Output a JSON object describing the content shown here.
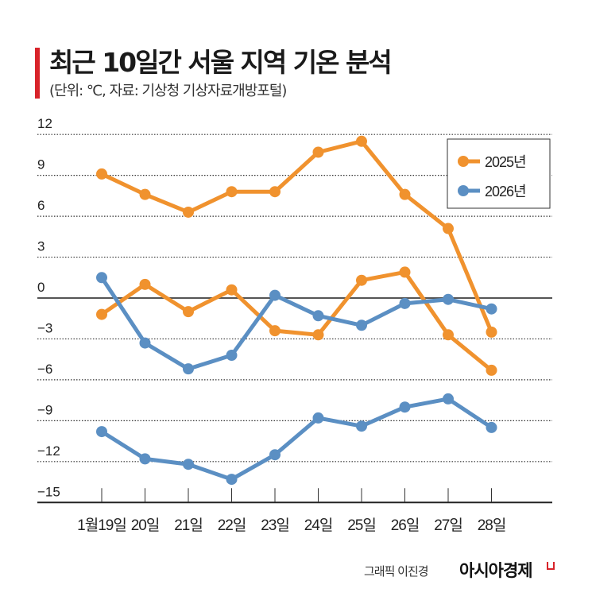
{
  "header": {
    "title": "최근 10일간 서울 지역 기온 분석",
    "subtitle": "(단위: ℃, 자료: 기상청 기상자료개방포털)"
  },
  "footer": {
    "credit": "그래픽 이진경",
    "brand": "아시아경제"
  },
  "chart_data": {
    "type": "line",
    "title": "최근 10일간 서울 지역 기온 분석",
    "subtitle": "(단위: ℃, 자료: 기상청 기상자료개방포털)",
    "categories": [
      "1월19일",
      "20일",
      "21일",
      "22일",
      "23일",
      "24일",
      "25일",
      "26일",
      "27일",
      "28일"
    ],
    "yticks": [
      12,
      9,
      6,
      3,
      0,
      -3,
      -6,
      -9,
      -12,
      -15
    ],
    "ylim": [
      -15,
      12
    ],
    "grid": "horizontal dotted",
    "legend_placement": "top-right",
    "legend": [
      {
        "name": "2025년",
        "color": "#F0922E"
      },
      {
        "name": "2026년",
        "color": "#5B8FC3"
      }
    ],
    "series": [
      {
        "legend": "2025년",
        "color": "#F0922E",
        "values": [
          9.1,
          7.6,
          6.3,
          7.8,
          7.8,
          10.7,
          11.5,
          7.6,
          5.1,
          -2.5
        ]
      },
      {
        "legend": "2025년",
        "color": "#F0922E",
        "values": [
          -1.2,
          1.0,
          -1.0,
          0.6,
          -2.4,
          -2.7,
          1.3,
          1.9,
          -2.7,
          -5.3
        ]
      },
      {
        "legend": "2026년",
        "color": "#5B8FC3",
        "values": [
          1.5,
          -3.3,
          -5.2,
          -4.2,
          0.2,
          -1.3,
          -2.0,
          -0.4,
          -0.1,
          -0.8
        ]
      },
      {
        "legend": "2026년",
        "color": "#5B8FC3",
        "values": [
          -9.8,
          -11.8,
          -12.2,
          -13.3,
          -11.5,
          -8.8,
          -9.4,
          -8.0,
          -7.4,
          -9.5
        ]
      }
    ]
  }
}
